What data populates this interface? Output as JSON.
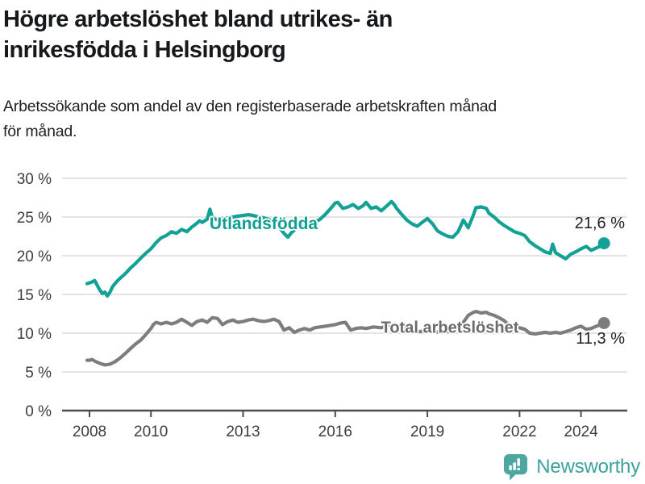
{
  "header": {
    "title_lines": [
      "Högre arbetslöshet bland utrikes- än",
      "inrikesfödda i Helsingborg"
    ],
    "subtitle_lines": [
      "Arbetssökande som andel av den registerbaserade arbetskraften månad",
      "för månad."
    ]
  },
  "chart_data": {
    "type": "line",
    "unit": "%",
    "title": "Högre arbetslöshet bland utrikes- än inrikesfödda i Helsingborg",
    "subtitle": "Arbetssökande som andel av den registerbaserade arbetskraften månad för månad.",
    "grid": true,
    "legend_position": "inline-labels",
    "style": {
      "grid_color": "#dcdcdc",
      "axis_color": "#4c4c4c",
      "tick_text_color": "#3d3d3d"
    },
    "x_axis": {
      "range": [
        2007.1,
        2025.5
      ],
      "ticks": [
        {
          "v": 2008,
          "label": "2008"
        },
        {
          "v": 2010,
          "label": "2010"
        },
        {
          "v": 2013,
          "label": "2013"
        },
        {
          "v": 2016,
          "label": "2016"
        },
        {
          "v": 2019,
          "label": "2019"
        },
        {
          "v": 2022,
          "label": "2022"
        },
        {
          "v": 2024,
          "label": "2024"
        }
      ]
    },
    "y_axis": {
      "range": [
        0,
        30
      ],
      "ticks": [
        {
          "v": 0,
          "label": "0 %"
        },
        {
          "v": 5,
          "label": "5 %"
        },
        {
          "v": 10,
          "label": "10 %"
        },
        {
          "v": 15,
          "label": "15 %"
        },
        {
          "v": 20,
          "label": "20 %"
        },
        {
          "v": 25,
          "label": "25 %"
        },
        {
          "v": 30,
          "label": "30 %"
        }
      ]
    },
    "series": [
      {
        "name": "Utlandsfödda",
        "color": "#14a195",
        "label_color": "#0f9f93",
        "end_value": 21.6,
        "end_label": "21,6 %",
        "points": [
          [
            2007.92,
            16.4
          ],
          [
            2008.0,
            16.5
          ],
          [
            2008.08,
            16.6
          ],
          [
            2008.17,
            16.8
          ],
          [
            2008.25,
            16.2
          ],
          [
            2008.33,
            15.6
          ],
          [
            2008.42,
            15.1
          ],
          [
            2008.5,
            15.3
          ],
          [
            2008.58,
            14.8
          ],
          [
            2008.67,
            15.3
          ],
          [
            2008.75,
            16.0
          ],
          [
            2008.83,
            16.4
          ],
          [
            2008.92,
            16.8
          ],
          [
            2009.0,
            17.1
          ],
          [
            2009.17,
            17.7
          ],
          [
            2009.33,
            18.4
          ],
          [
            2009.5,
            19.0
          ],
          [
            2009.67,
            19.7
          ],
          [
            2009.83,
            20.3
          ],
          [
            2010.0,
            20.9
          ],
          [
            2010.17,
            21.7
          ],
          [
            2010.33,
            22.3
          ],
          [
            2010.5,
            22.6
          ],
          [
            2010.67,
            23.1
          ],
          [
            2010.83,
            22.9
          ],
          [
            2011.0,
            23.4
          ],
          [
            2011.17,
            23.1
          ],
          [
            2011.33,
            23.7
          ],
          [
            2011.5,
            24.2
          ],
          [
            2011.58,
            24.5
          ],
          [
            2011.67,
            24.3
          ],
          [
            2011.83,
            24.7
          ],
          [
            2011.92,
            26.0
          ],
          [
            2012.0,
            24.9
          ],
          [
            2012.17,
            24.6
          ],
          [
            2012.33,
            24.8
          ],
          [
            2012.5,
            24.9
          ],
          [
            2012.67,
            25.0
          ],
          [
            2012.83,
            25.1
          ],
          [
            2013.0,
            25.2
          ],
          [
            2013.17,
            25.3
          ],
          [
            2013.33,
            25.2
          ],
          [
            2013.5,
            25.0
          ],
          [
            2013.67,
            24.9
          ],
          [
            2013.83,
            24.7
          ],
          [
            2014.0,
            24.3
          ],
          [
            2014.17,
            23.7
          ],
          [
            2014.33,
            22.9
          ],
          [
            2014.46,
            22.4
          ],
          [
            2014.58,
            23.0
          ],
          [
            2014.75,
            23.6
          ],
          [
            2014.92,
            24.0
          ],
          [
            2015.0,
            24.2
          ],
          [
            2015.17,
            24.0
          ],
          [
            2015.33,
            24.3
          ],
          [
            2015.5,
            24.7
          ],
          [
            2015.67,
            25.3
          ],
          [
            2015.83,
            26.0
          ],
          [
            2016.0,
            26.8
          ],
          [
            2016.08,
            26.9
          ],
          [
            2016.25,
            26.1
          ],
          [
            2016.42,
            26.3
          ],
          [
            2016.58,
            26.6
          ],
          [
            2016.75,
            26.1
          ],
          [
            2016.92,
            26.5
          ],
          [
            2017.0,
            26.9
          ],
          [
            2017.17,
            26.1
          ],
          [
            2017.33,
            26.3
          ],
          [
            2017.5,
            25.8
          ],
          [
            2017.67,
            26.4
          ],
          [
            2017.83,
            27.0
          ],
          [
            2017.92,
            26.6
          ],
          [
            2018.0,
            26.1
          ],
          [
            2018.17,
            25.3
          ],
          [
            2018.33,
            24.6
          ],
          [
            2018.5,
            24.1
          ],
          [
            2018.67,
            23.8
          ],
          [
            2018.83,
            24.3
          ],
          [
            2019.0,
            24.8
          ],
          [
            2019.17,
            24.1
          ],
          [
            2019.33,
            23.2
          ],
          [
            2019.5,
            22.8
          ],
          [
            2019.67,
            22.5
          ],
          [
            2019.83,
            22.4
          ],
          [
            2020.0,
            23.1
          ],
          [
            2020.17,
            24.6
          ],
          [
            2020.33,
            23.6
          ],
          [
            2020.5,
            25.3
          ],
          [
            2020.58,
            26.2
          ],
          [
            2020.75,
            26.3
          ],
          [
            2020.92,
            26.1
          ],
          [
            2021.0,
            25.5
          ],
          [
            2021.17,
            25.0
          ],
          [
            2021.33,
            24.4
          ],
          [
            2021.5,
            23.9
          ],
          [
            2021.67,
            23.5
          ],
          [
            2021.83,
            23.1
          ],
          [
            2022.0,
            22.9
          ],
          [
            2022.17,
            22.6
          ],
          [
            2022.33,
            21.8
          ],
          [
            2022.5,
            21.3
          ],
          [
            2022.67,
            20.9
          ],
          [
            2022.83,
            20.5
          ],
          [
            2023.0,
            20.3
          ],
          [
            2023.08,
            21.5
          ],
          [
            2023.17,
            20.4
          ],
          [
            2023.33,
            20.0
          ],
          [
            2023.5,
            19.6
          ],
          [
            2023.67,
            20.2
          ],
          [
            2023.83,
            20.5
          ],
          [
            2024.0,
            20.9
          ],
          [
            2024.17,
            21.2
          ],
          [
            2024.33,
            20.7
          ],
          [
            2024.5,
            21.0
          ],
          [
            2024.67,
            21.3
          ],
          [
            2024.75,
            21.6
          ]
        ]
      },
      {
        "name": "Total arbetslöshet",
        "color": "#7d7d7d",
        "label_color": "#6b6b6b",
        "end_value": 11.3,
        "end_label": "11,3 %",
        "points": [
          [
            2007.92,
            6.5
          ],
          [
            2008.0,
            6.5
          ],
          [
            2008.08,
            6.6
          ],
          [
            2008.17,
            6.4
          ],
          [
            2008.33,
            6.1
          ],
          [
            2008.5,
            5.9
          ],
          [
            2008.67,
            6.0
          ],
          [
            2008.83,
            6.3
          ],
          [
            2009.0,
            6.8
          ],
          [
            2009.17,
            7.4
          ],
          [
            2009.33,
            8.0
          ],
          [
            2009.5,
            8.6
          ],
          [
            2009.67,
            9.1
          ],
          [
            2009.83,
            9.8
          ],
          [
            2010.0,
            10.6
          ],
          [
            2010.08,
            11.1
          ],
          [
            2010.17,
            11.4
          ],
          [
            2010.33,
            11.2
          ],
          [
            2010.5,
            11.4
          ],
          [
            2010.67,
            11.2
          ],
          [
            2010.83,
            11.4
          ],
          [
            2011.0,
            11.8
          ],
          [
            2011.17,
            11.4
          ],
          [
            2011.33,
            11.0
          ],
          [
            2011.5,
            11.5
          ],
          [
            2011.67,
            11.7
          ],
          [
            2011.83,
            11.4
          ],
          [
            2012.0,
            12.0
          ],
          [
            2012.17,
            11.9
          ],
          [
            2012.33,
            11.1
          ],
          [
            2012.5,
            11.5
          ],
          [
            2012.67,
            11.7
          ],
          [
            2012.83,
            11.4
          ],
          [
            2013.0,
            11.5
          ],
          [
            2013.17,
            11.7
          ],
          [
            2013.33,
            11.8
          ],
          [
            2013.5,
            11.6
          ],
          [
            2013.67,
            11.5
          ],
          [
            2013.83,
            11.6
          ],
          [
            2014.0,
            11.8
          ],
          [
            2014.17,
            11.5
          ],
          [
            2014.33,
            10.4
          ],
          [
            2014.5,
            10.7
          ],
          [
            2014.67,
            10.1
          ],
          [
            2014.83,
            10.4
          ],
          [
            2015.0,
            10.6
          ],
          [
            2015.17,
            10.4
          ],
          [
            2015.33,
            10.7
          ],
          [
            2015.5,
            10.8
          ],
          [
            2015.67,
            10.9
          ],
          [
            2015.83,
            11.0
          ],
          [
            2016.0,
            11.1
          ],
          [
            2016.17,
            11.3
          ],
          [
            2016.33,
            11.4
          ],
          [
            2016.5,
            10.4
          ],
          [
            2016.67,
            10.6
          ],
          [
            2016.83,
            10.7
          ],
          [
            2017.0,
            10.6
          ],
          [
            2017.25,
            10.8
          ],
          [
            2017.5,
            10.7
          ],
          [
            2017.75,
            11.0
          ],
          [
            2017.92,
            11.2
          ],
          [
            2018.0,
            11.0
          ],
          [
            2018.25,
            10.7
          ],
          [
            2018.5,
            10.4
          ],
          [
            2018.75,
            10.2
          ],
          [
            2019.0,
            10.4
          ],
          [
            2019.25,
            10.2
          ],
          [
            2019.5,
            10.1
          ],
          [
            2019.75,
            10.3
          ],
          [
            2020.0,
            10.6
          ],
          [
            2020.17,
            11.4
          ],
          [
            2020.33,
            12.3
          ],
          [
            2020.5,
            12.7
          ],
          [
            2020.58,
            12.8
          ],
          [
            2020.75,
            12.6
          ],
          [
            2020.92,
            12.7
          ],
          [
            2021.0,
            12.5
          ],
          [
            2021.17,
            12.3
          ],
          [
            2021.33,
            12.0
          ],
          [
            2021.5,
            11.6
          ],
          [
            2021.67,
            11.0
          ],
          [
            2021.83,
            10.8
          ],
          [
            2022.0,
            10.7
          ],
          [
            2022.17,
            10.5
          ],
          [
            2022.33,
            10.0
          ],
          [
            2022.5,
            9.9
          ],
          [
            2022.67,
            10.0
          ],
          [
            2022.83,
            10.1
          ],
          [
            2023.0,
            10.0
          ],
          [
            2023.17,
            10.1
          ],
          [
            2023.33,
            10.0
          ],
          [
            2023.5,
            10.2
          ],
          [
            2023.67,
            10.4
          ],
          [
            2023.83,
            10.7
          ],
          [
            2024.0,
            10.9
          ],
          [
            2024.17,
            10.5
          ],
          [
            2024.33,
            10.6
          ],
          [
            2024.5,
            10.9
          ],
          [
            2024.67,
            11.1
          ],
          [
            2024.75,
            11.3
          ]
        ]
      }
    ]
  },
  "footer": {
    "brand": "Newsworthy",
    "icon_color": "#4ba7a0",
    "text_color": "#3da29b"
  }
}
